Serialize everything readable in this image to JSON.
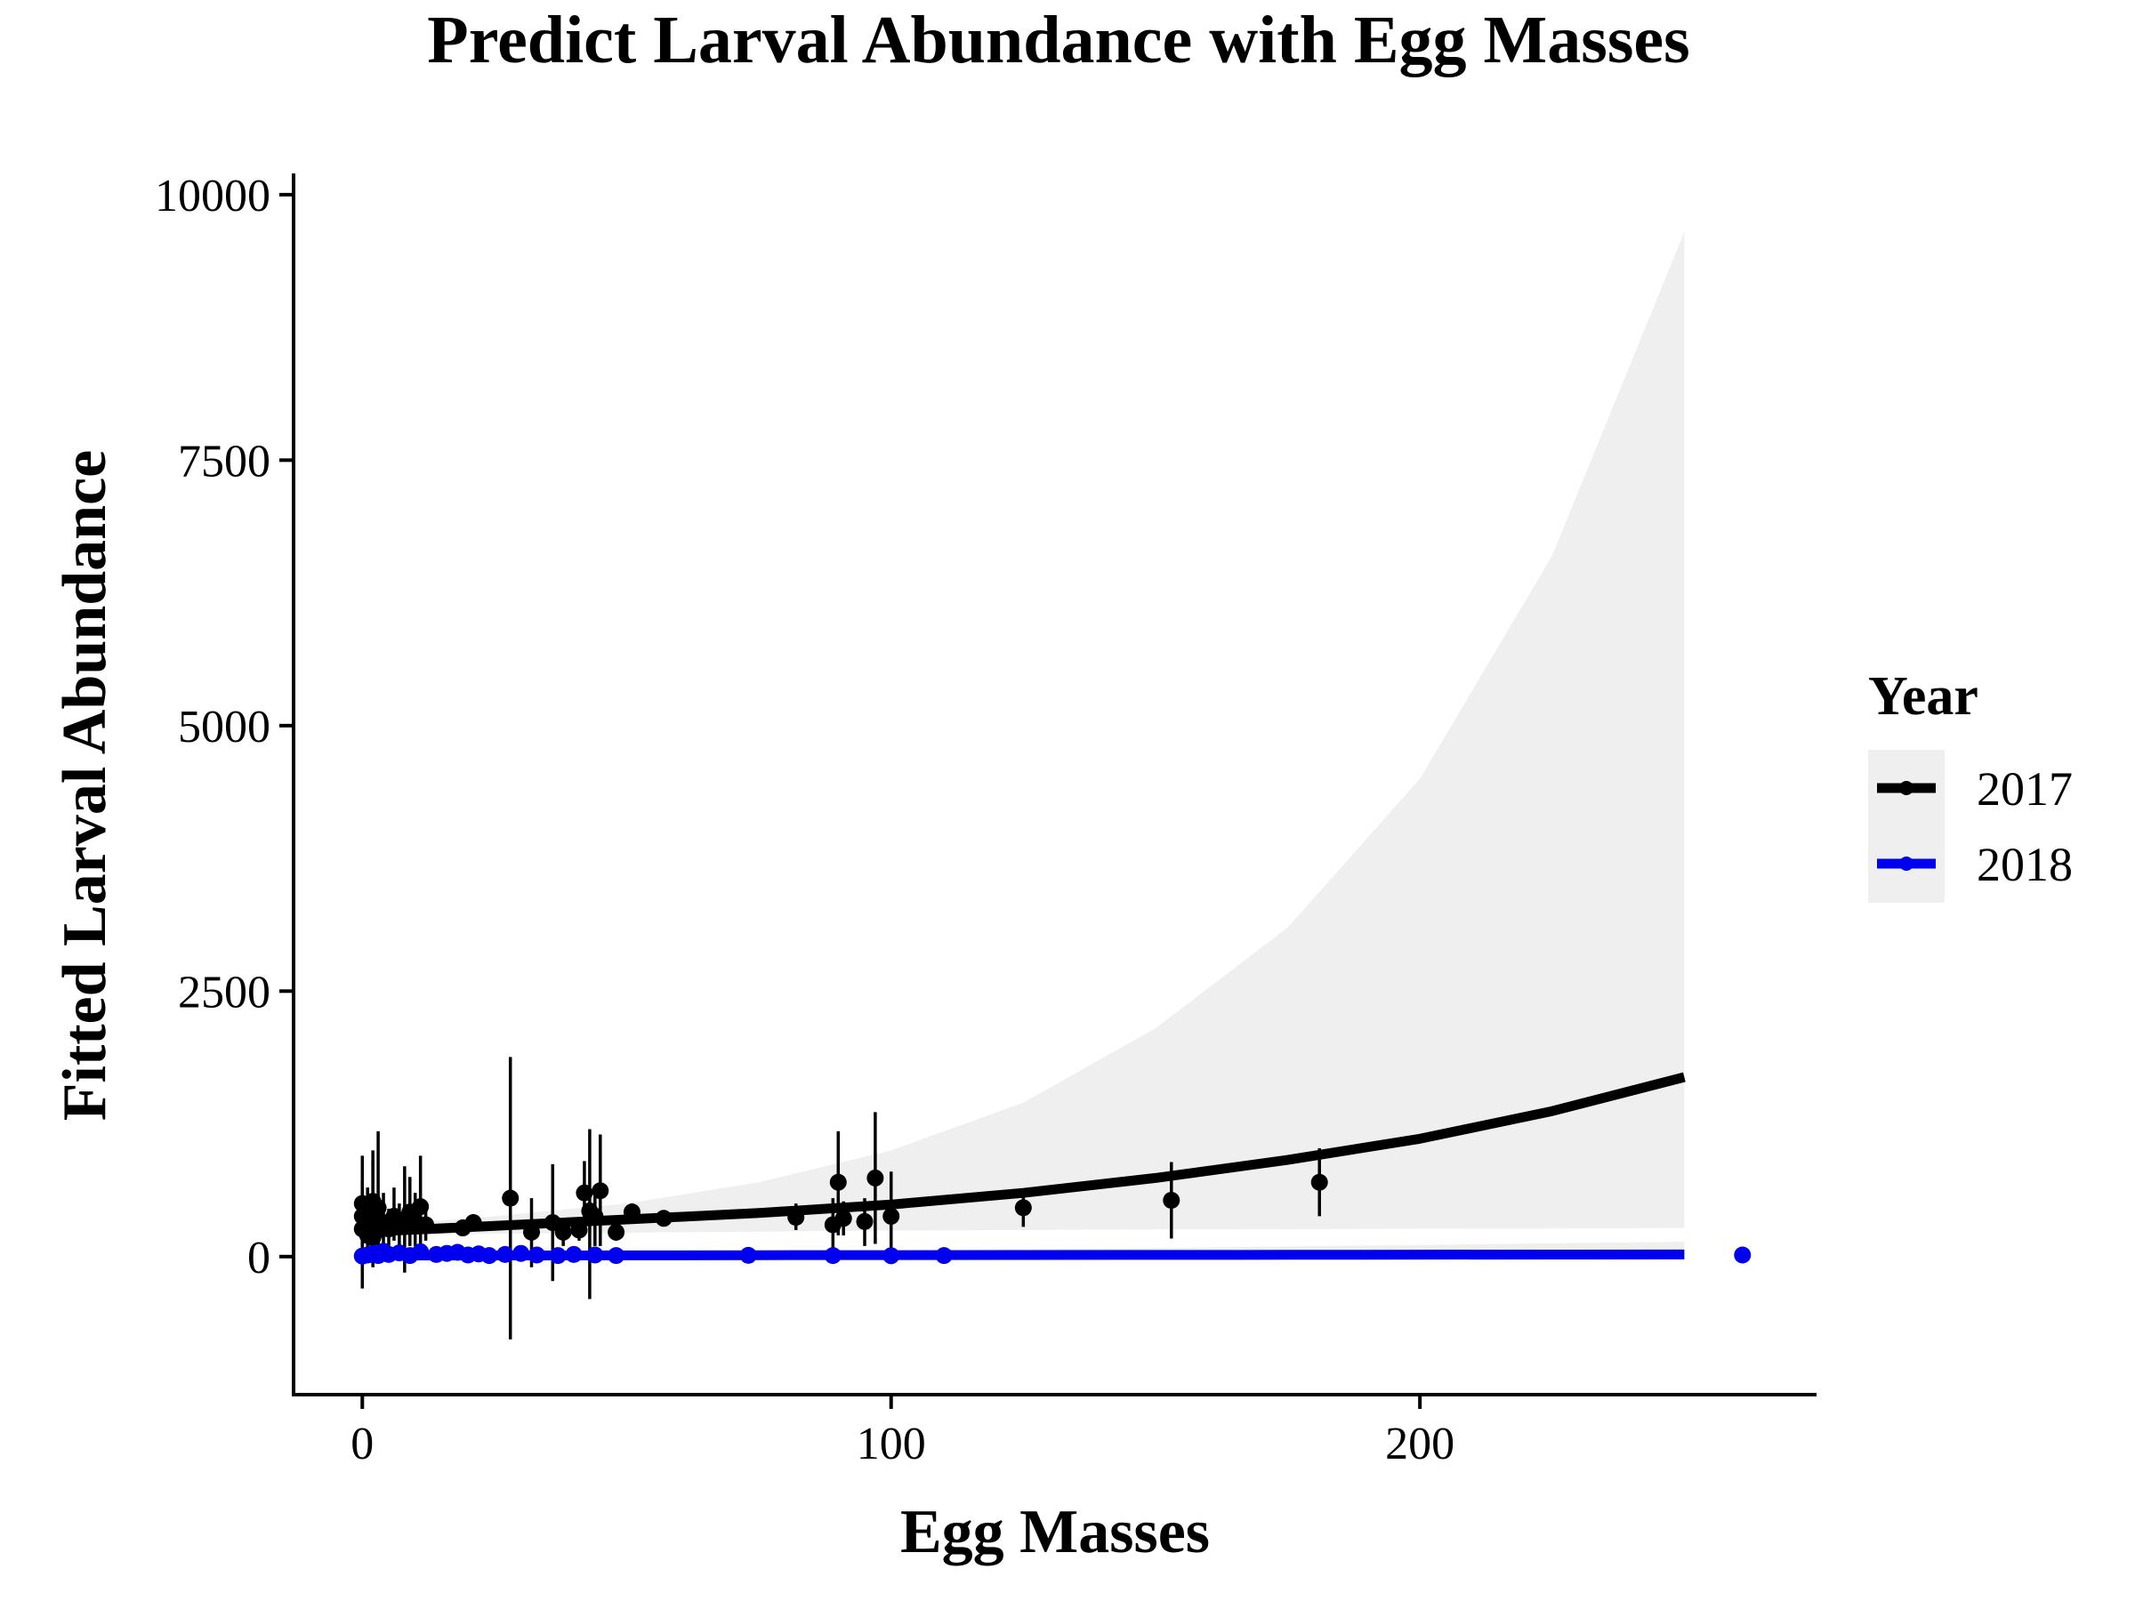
{
  "chart_data": {
    "type": "line",
    "title": "Predict Larval Abundance with Egg Masses",
    "xlabel": "Egg Masses",
    "ylabel": "Fitted Larval Abundance",
    "xlim": [
      -13,
      275
    ],
    "ylim": [
      -1300,
      10200
    ],
    "xticks": [
      0,
      100,
      200
    ],
    "yticks": [
      0,
      2500,
      5000,
      7500,
      10000
    ],
    "xtick_labels": [
      "0",
      "100",
      "200"
    ],
    "ytick_labels": [
      "0",
      "2500",
      "5000",
      "7500",
      "10000"
    ],
    "grid": false,
    "legend": {
      "title": "Year",
      "position": "right",
      "entries": [
        "2017",
        "2018"
      ]
    },
    "colors": {
      "2017": "#000000",
      "2018": "#0000ee",
      "band": "#efefef"
    },
    "series": [
      {
        "name": "2017",
        "fit": {
          "x": [
            0,
            25,
            50,
            75,
            100,
            125,
            150,
            175,
            200,
            225,
            250
          ],
          "y": [
            230,
            290,
            350,
            410,
            490,
            600,
            740,
            910,
            1110,
            1370,
            1690
          ]
        },
        "band": {
          "x": [
            0,
            25,
            50,
            75,
            100,
            125,
            150,
            175,
            200,
            225,
            250
          ],
          "lower": [
            200,
            215,
            225,
            235,
            245,
            250,
            255,
            258,
            262,
            265,
            270
          ],
          "upper": [
            280,
            380,
            500,
            700,
            1000,
            1450,
            2150,
            3100,
            4500,
            6600,
            9650
          ]
        },
        "points": [
          {
            "x": 0,
            "y": 500,
            "lo": 50,
            "hi": 950
          },
          {
            "x": 0,
            "y": 380,
            "lo": -300,
            "hi": 700
          },
          {
            "x": 0,
            "y": 260,
            "lo": 100,
            "hi": 500
          },
          {
            "x": 1,
            "y": 340,
            "lo": 100,
            "hi": 650
          },
          {
            "x": 1,
            "y": 200,
            "lo": 50,
            "hi": 400
          },
          {
            "x": 2,
            "y": 520,
            "lo": 200,
            "hi": 900
          },
          {
            "x": 2,
            "y": 420,
            "lo": -100,
            "hi": 1000
          },
          {
            "x": 2,
            "y": 300,
            "lo": 100,
            "hi": 550
          },
          {
            "x": 2,
            "y": 180,
            "lo": 50,
            "hi": 350
          },
          {
            "x": 3,
            "y": 460,
            "lo": 100,
            "hi": 1180
          },
          {
            "x": 3,
            "y": 250,
            "lo": 80,
            "hi": 500
          },
          {
            "x": 4,
            "y": 320,
            "lo": 100,
            "hi": 600
          },
          {
            "x": 5,
            "y": 260,
            "lo": 100,
            "hi": 450
          },
          {
            "x": 6,
            "y": 380,
            "lo": 150,
            "hi": 650
          },
          {
            "x": 7,
            "y": 300,
            "lo": 100,
            "hi": 500
          },
          {
            "x": 8,
            "y": 350,
            "lo": -150,
            "hi": 850
          },
          {
            "x": 9,
            "y": 420,
            "lo": 100,
            "hi": 750
          },
          {
            "x": 10,
            "y": 330,
            "lo": 100,
            "hi": 600
          },
          {
            "x": 11,
            "y": 470,
            "lo": 100,
            "hi": 950
          },
          {
            "x": 12,
            "y": 300,
            "lo": 150,
            "hi": 450
          },
          {
            "x": 19,
            "y": 270,
            "lo": 200,
            "hi": 350
          },
          {
            "x": 21,
            "y": 320,
            "lo": 250,
            "hi": 400
          },
          {
            "x": 28,
            "y": 550,
            "lo": -780,
            "hi": 1880
          },
          {
            "x": 32,
            "y": 230,
            "lo": -100,
            "hi": 550
          },
          {
            "x": 36,
            "y": 320,
            "lo": -230,
            "hi": 870
          },
          {
            "x": 38,
            "y": 230,
            "lo": 100,
            "hi": 350
          },
          {
            "x": 41,
            "y": 250,
            "lo": 150,
            "hi": 350
          },
          {
            "x": 42,
            "y": 600,
            "lo": 300,
            "hi": 900
          },
          {
            "x": 43,
            "y": 430,
            "lo": -400,
            "hi": 1200
          },
          {
            "x": 44,
            "y": 380,
            "lo": 100,
            "hi": 650
          },
          {
            "x": 45,
            "y": 620,
            "lo": 100,
            "hi": 1150
          },
          {
            "x": 48,
            "y": 230,
            "lo": 150,
            "hi": 320
          },
          {
            "x": 51,
            "y": 420,
            "lo": 350,
            "hi": 500
          },
          {
            "x": 57,
            "y": 360,
            "lo": 320,
            "hi": 400
          },
          {
            "x": 82,
            "y": 370,
            "lo": 250,
            "hi": 500
          },
          {
            "x": 89,
            "y": 300,
            "lo": 50,
            "hi": 550
          },
          {
            "x": 90,
            "y": 700,
            "lo": 200,
            "hi": 1180
          },
          {
            "x": 91,
            "y": 360,
            "lo": 200,
            "hi": 520
          },
          {
            "x": 95,
            "y": 330,
            "lo": 100,
            "hi": 550
          },
          {
            "x": 97,
            "y": 740,
            "lo": 120,
            "hi": 1360
          },
          {
            "x": 100,
            "y": 380,
            "lo": -50,
            "hi": 800
          },
          {
            "x": 125,
            "y": 460,
            "lo": 280,
            "hi": 640
          },
          {
            "x": 153,
            "y": 530,
            "lo": 170,
            "hi": 890
          },
          {
            "x": 181,
            "y": 700,
            "lo": 380,
            "hi": 1020
          }
        ]
      },
      {
        "name": "2018",
        "fit": {
          "x": [
            0,
            25,
            50,
            75,
            100,
            125,
            150,
            175,
            200,
            225,
            250
          ],
          "y": [
            10,
            11,
            12,
            13,
            14,
            15,
            16,
            17,
            18,
            19,
            20
          ]
        },
        "band": {
          "x": [
            0,
            25,
            50,
            75,
            100,
            125,
            150,
            175,
            200,
            225,
            250
          ],
          "lower": [
            0,
            0,
            0,
            0,
            0,
            0,
            0,
            0,
            0,
            0,
            0
          ],
          "upper": [
            40,
            45,
            50,
            55,
            60,
            70,
            80,
            95,
            110,
            125,
            140
          ]
        },
        "points": [
          {
            "x": 0,
            "y": 5
          },
          {
            "x": 1,
            "y": 15
          },
          {
            "x": 2,
            "y": 30
          },
          {
            "x": 3,
            "y": 10
          },
          {
            "x": 4,
            "y": 50
          },
          {
            "x": 5,
            "y": 20
          },
          {
            "x": 7,
            "y": 35
          },
          {
            "x": 9,
            "y": 10
          },
          {
            "x": 11,
            "y": 45
          },
          {
            "x": 14,
            "y": 20
          },
          {
            "x": 16,
            "y": 30
          },
          {
            "x": 18,
            "y": 40
          },
          {
            "x": 20,
            "y": 15
          },
          {
            "x": 22,
            "y": 25
          },
          {
            "x": 24,
            "y": 10
          },
          {
            "x": 27,
            "y": 20
          },
          {
            "x": 30,
            "y": 30
          },
          {
            "x": 33,
            "y": 15
          },
          {
            "x": 37,
            "y": 10
          },
          {
            "x": 40,
            "y": 20
          },
          {
            "x": 44,
            "y": 15
          },
          {
            "x": 48,
            "y": 10
          },
          {
            "x": 73,
            "y": 12
          },
          {
            "x": 89,
            "y": 10
          },
          {
            "x": 100,
            "y": 8
          },
          {
            "x": 110,
            "y": 10
          },
          {
            "x": 261,
            "y": 15
          }
        ]
      }
    ]
  }
}
